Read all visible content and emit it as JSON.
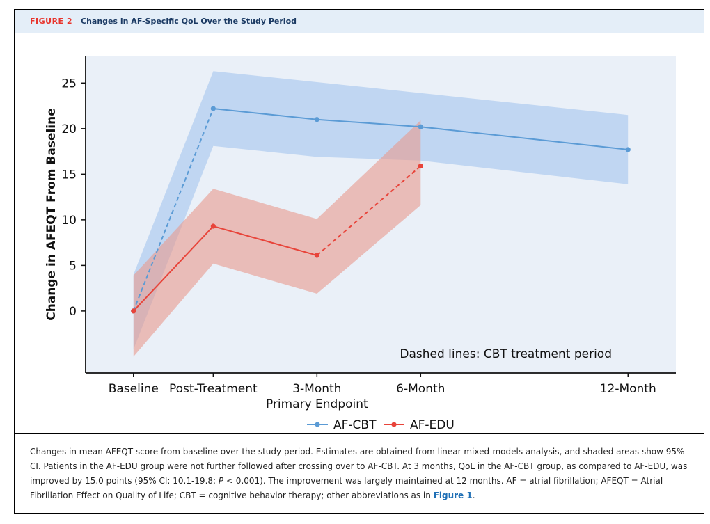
{
  "header": {
    "figure_label": "FIGURE 2",
    "title": "Changes in AF-Specific QoL Over the Study Period"
  },
  "chart_data": {
    "type": "line",
    "title": "",
    "xlabel": "",
    "ylabel": "Change in AFEQT From Baseline",
    "x_positions": [
      0,
      1,
      2.3,
      3.6,
      6.2
    ],
    "x_tick_labels": [
      "Baseline",
      "Post-Treatment",
      "3-Month",
      "6-Month",
      "12-Month"
    ],
    "x_sub_label": "Primary Endpoint",
    "y_ticks": [
      0,
      5,
      10,
      15,
      20,
      25
    ],
    "xlim": [
      -0.6,
      6.8
    ],
    "ylim": [
      -6.8,
      28
    ],
    "annotation": "Dashed lines: CBT treatment period",
    "legend_position": "bottom-center",
    "series": [
      {
        "name": "AF-CBT",
        "color": "#5b9bd5",
        "band_color": "#a9c8ee",
        "x": [
          0,
          1,
          2.3,
          3.6,
          6.2
        ],
        "y": [
          0,
          22.2,
          21.0,
          20.2,
          17.7
        ],
        "ci_low": [
          -4.2,
          18.1,
          16.9,
          16.5,
          13.9
        ],
        "ci_high": [
          4.0,
          26.3,
          25.1,
          23.9,
          21.5
        ],
        "dashed_segments": [
          [
            0,
            1
          ]
        ]
      },
      {
        "name": "AF-EDU",
        "color": "#e8443a",
        "band_color": "#e79a8d",
        "x": [
          0,
          1,
          2.3,
          3.6
        ],
        "y": [
          0,
          9.3,
          6.1,
          15.9
        ],
        "ci_low": [
          -5.0,
          5.2,
          1.9,
          11.6
        ],
        "ci_high": [
          3.9,
          13.4,
          10.1,
          20.9
        ],
        "dashed_segments": [
          [
            2,
            3
          ]
        ]
      }
    ]
  },
  "caption": {
    "text_1": "Changes in mean AFEQT score from baseline over the study period. Estimates are obtained from linear mixed-models analysis, and shaded areas show 95% CI. Patients in the AF-EDU group were not further followed after crossing over to AF-CBT. At 3 months, QoL in the AF-CBT group, as compared to AF-EDU, was improved by 15.0 points (95% CI: 10.1-19.8; ",
    "p_italic": "P",
    "text_2": " < 0.001). The improvement was largely maintained at 12 months. AF = atrial fibrillation; AFEQT = Atrial Fibrillation Effect on Quality of Life; CBT = cognitive behavior therapy; other abbreviations as in ",
    "figure_ref": "Figure 1",
    "text_3": "."
  }
}
